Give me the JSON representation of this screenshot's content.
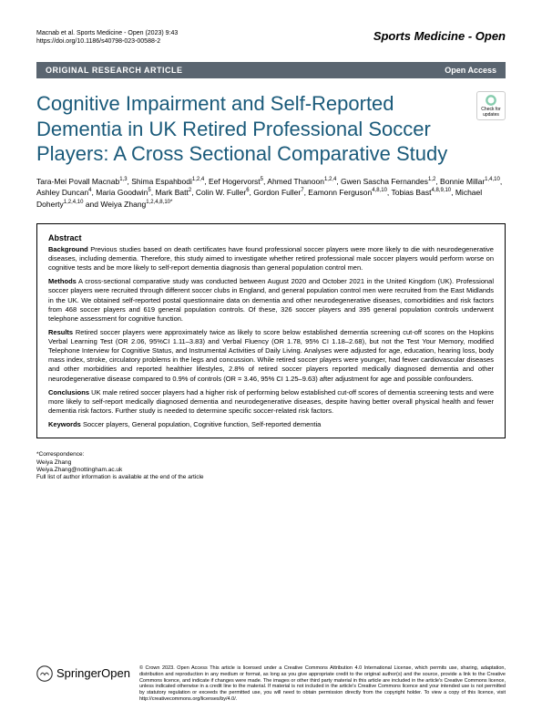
{
  "header": {
    "citation_line1": "Macnab et al. Sports Medicine - Open            (2023) 9:43",
    "citation_line2": "https://doi.org/10.1186/s40798-023-00588-2",
    "journal": "Sports Medicine - Open"
  },
  "category_bar": {
    "label": "ORIGINAL RESEARCH ARTICLE",
    "open_access": "Open Access"
  },
  "title": "Cognitive Impairment and Self-Reported Dementia in UK Retired Professional Soccer Players: A Cross Sectional Comparative Study",
  "check_updates": "Check for updates",
  "authors_html": "Tara-Mei Povall Macnab<sup>1,3</sup>, Shima Espahbodi<sup>1,2,4</sup>, Eef Hogervorst<sup>5</sup>, Ahmed Thanoon<sup>1,2,4</sup>, Gwen Sascha Fernandes<sup>1,2</sup>, Bonnie Millar<sup>1,4,10</sup>, Ashley Duncan<sup>4</sup>, Maria Goodwin<sup>5</sup>, Mark Batt<sup>2</sup>, Colin W. Fuller<sup>6</sup>, Gordon Fuller<sup>7</sup>, Eamonn Ferguson<sup>4,8,10</sup>, Tobias Bast<sup>4,8,9,10</sup>, Michael Doherty<sup>1,2,4,10</sup> and Weiya Zhang<sup>1,2,4,8,10*</sup>",
  "abstract": {
    "heading": "Abstract",
    "background_label": "Background",
    "background": "Previous studies based on death certificates have found professional soccer players were more likely to die with neurodegenerative diseases, including dementia. Therefore, this study aimed to investigate whether retired professional male soccer players would perform worse on cognitive tests and be more likely to self-report dementia diagnosis than general population control men.",
    "methods_label": "Methods",
    "methods": "A cross-sectional comparative study was conducted between August 2020 and October 2021 in the United Kingdom (UK). Professional soccer players were recruited through different soccer clubs in England, and general population control men were recruited from the East Midlands in the UK. We obtained self-reported postal questionnaire data on dementia and other neurodegenerative diseases, comorbidities and risk factors from 468 soccer players and 619 general population controls. Of these, 326 soccer players and 395 general population controls underwent telephone assessment for cognitive function.",
    "results_label": "Results",
    "results": "Retired soccer players were approximately twice as likely to score below established dementia screening cut-off scores on the Hopkins Verbal Learning Test (OR 2.06, 95%CI 1.11–3.83) and Verbal Fluency (OR 1.78, 95% CI 1.18–2.68), but not the Test Your Memory, modified Telephone Interview for Cognitive Status, and Instrumental Activities of Daily Living. Analyses were adjusted for age, education, hearing loss, body mass index, stroke, circulatory problems in the legs and concussion. While retired soccer players were younger, had fewer cardiovascular diseases and other morbidities and reported healthier lifestyles, 2.8% of retired soccer players reported medically diagnosed dementia and other neurodegenerative disease compared to 0.9% of controls (OR = 3.46, 95% CI 1.25–9.63) after adjustment for age and possible confounders.",
    "conclusions_label": "Conclusions",
    "conclusions": "UK male retired soccer players had a higher risk of performing below established cut-off scores of dementia screening tests and were more likely to self-report medically diagnosed dementia and neurodegenerative diseases, despite having better overall physical health and fewer dementia risk factors. Further study is needed to determine specific soccer-related risk factors.",
    "keywords_label": "Keywords",
    "keywords": "Soccer players, General population, Cognitive function, Self-reported dementia"
  },
  "correspondence": {
    "label": "*Correspondence:",
    "name": "Weiya Zhang",
    "email": "Weiya.Zhang@nottingham.ac.uk",
    "note": "Full list of author information is available at the end of the article"
  },
  "footer": {
    "publisher": "SpringerOpen",
    "license": "© Crown 2023. Open Access This article is licensed under a Creative Commons Attribution 4.0 International License, which permits use, sharing, adaptation, distribution and reproduction in any medium or format, as long as you give appropriate credit to the original author(s) and the source, provide a link to the Creative Commons licence, and indicate if changes were made. The images or other third party material in this article are included in the article's Creative Commons licence, unless indicated otherwise in a credit line to the material. If material is not included in the article's Creative Commons licence and your intended use is not permitted by statutory regulation or exceeds the permitted use, you will need to obtain permission directly from the copyright holder. To view a copy of this licence, visit http://creativecommons.org/licenses/by/4.0/."
  }
}
